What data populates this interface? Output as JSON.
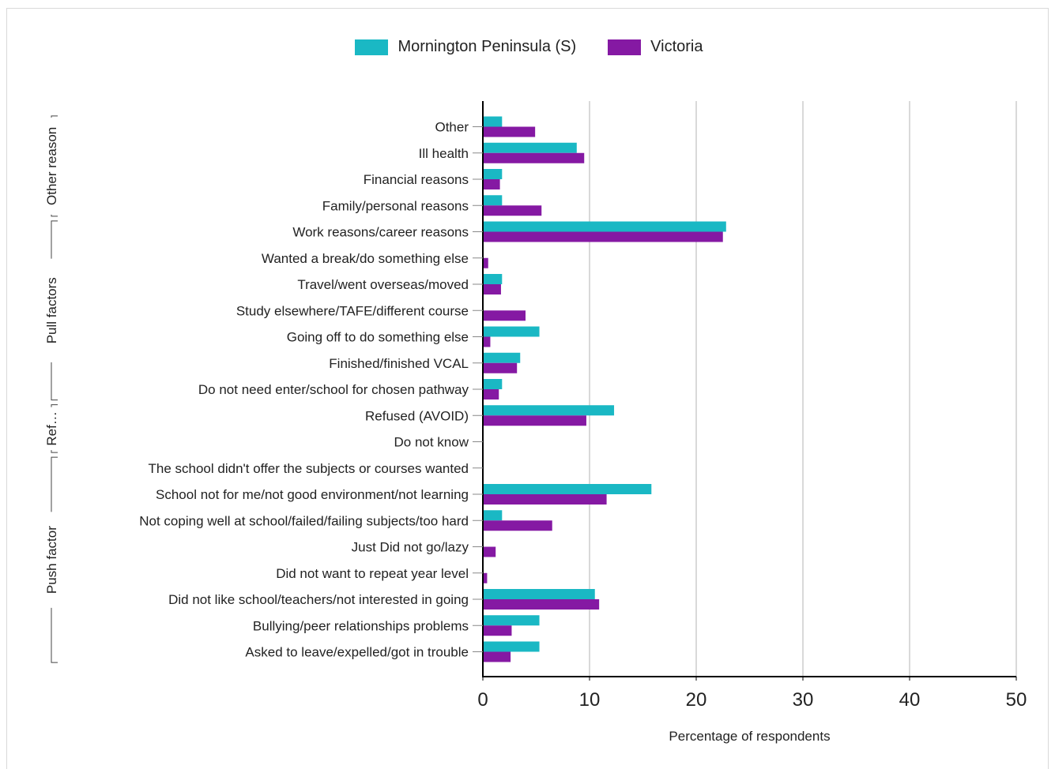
{
  "legend": [
    {
      "name": "Mornington Peninsula (S)",
      "color": "#1ab8c4"
    },
    {
      "name": "Victoria",
      "color": "#8519a3"
    }
  ],
  "chart_data": {
    "type": "bar",
    "orientation": "horizontal",
    "xlabel": "Percentage of respondents",
    "ylabel": "",
    "xlim": [
      0,
      50
    ],
    "xticks": [
      0,
      10,
      20,
      30,
      40,
      50
    ],
    "grid": true,
    "legend_position": "top-center",
    "categories": [
      "Other",
      "Ill health",
      "Financial reasons",
      "Family/personal reasons",
      "Work reasons/career reasons",
      "Wanted a break/do something else",
      "Travel/went overseas/moved",
      "Study elsewhere/TAFE/different course",
      "Going off to do something else",
      "Finished/finished VCAL",
      "Do not need enter/school for chosen pathway",
      "Refused (AVOID)",
      "Do not know",
      "The school didn't offer the subjects or courses wanted",
      "School not for me/not good environment/not learning",
      "Not coping well at school/failed/failing subjects/too hard",
      "Just Did not go/lazy",
      "Did not want to repeat year level",
      "Did not like school/teachers/not interested in going",
      "Bullying/peer relationships problems",
      "Asked to leave/expelled/got in trouble"
    ],
    "series": [
      {
        "name": "Mornington Peninsula (S)",
        "color": "#1ab8c4",
        "values": [
          1.8,
          8.8,
          1.8,
          1.8,
          22.8,
          0,
          1.8,
          0,
          5.3,
          3.5,
          1.8,
          12.3,
          0,
          0,
          15.8,
          1.8,
          0,
          0,
          10.5,
          5.3,
          5.3
        ]
      },
      {
        "name": "Victoria",
        "color": "#8519a3",
        "values": [
          4.9,
          9.5,
          1.6,
          5.5,
          22.5,
          0.5,
          1.7,
          4.0,
          0.7,
          3.2,
          1.5,
          9.7,
          0,
          0,
          11.6,
          6.5,
          1.2,
          0.4,
          10.9,
          2.7,
          2.6
        ]
      }
    ],
    "groups": [
      {
        "label": "Other reason",
        "from": 0,
        "to": 3
      },
      {
        "label": "Pull factors",
        "from": 4,
        "to": 10
      },
      {
        "label": "Ref…",
        "from": 11,
        "to": 12
      },
      {
        "label": "Push factor",
        "from": 13,
        "to": 20
      }
    ]
  }
}
